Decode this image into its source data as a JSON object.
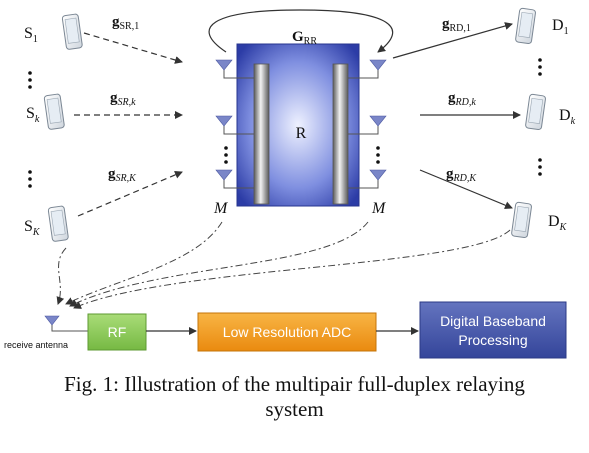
{
  "sources": [
    {
      "letter": "S",
      "sub": "1"
    },
    {
      "letter": "S",
      "sub": "k"
    },
    {
      "letter": "S",
      "sub": "K"
    }
  ],
  "destinations": [
    {
      "letter": "D",
      "sub": "1"
    },
    {
      "letter": "D",
      "sub": "k"
    },
    {
      "letter": "D",
      "sub": "K"
    }
  ],
  "links": {
    "sr": [
      {
        "base": "g",
        "sub": "SR,1"
      },
      {
        "base": "g",
        "sub": "SR,k"
      },
      {
        "base": "g",
        "sub": "SR,K"
      }
    ],
    "rd": [
      {
        "base": "g",
        "sub": "RD,1"
      },
      {
        "base": "g",
        "sub": "RD,k"
      },
      {
        "base": "g",
        "sub": "RD,K"
      }
    ],
    "loop": {
      "base": "G",
      "sub": "RR"
    }
  },
  "relay": {
    "label": "R",
    "left_antennas": "M",
    "right_antennas": "M"
  },
  "chain": {
    "antenna_label": "receive antenna",
    "rf": "RF",
    "adc": "Low Resolution ADC",
    "baseband_line1": "Digital Baseband",
    "baseband_line2": "Processing"
  },
  "caption": {
    "line1": "Fig. 1: Illustration of the multipair full-duplex relaying",
    "line2": "system"
  },
  "colors": {
    "relay_dark": "#2f3fa8",
    "relay_light": "#e8ecff",
    "antenna": "#7a86c8",
    "rf": "#8ccc58",
    "adc": "#f29b1f",
    "baseband": "#4a5cab"
  }
}
